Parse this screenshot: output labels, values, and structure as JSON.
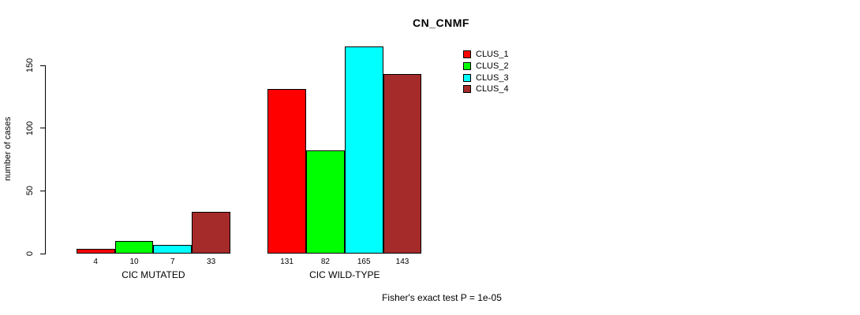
{
  "chart_data": {
    "type": "bar",
    "title": "CN_CNMF",
    "ylabel": "number of cases",
    "xlabel": "",
    "categories": [
      "CIC MUTATED",
      "CIC WILD-TYPE"
    ],
    "series": [
      {
        "name": "CLUS_1",
        "color": "#ff0000",
        "values": [
          4,
          131
        ]
      },
      {
        "name": "CLUS_2",
        "color": "#00ff00",
        "values": [
          10,
          82
        ]
      },
      {
        "name": "CLUS_3",
        "color": "#00ffff",
        "values": [
          7,
          165
        ]
      },
      {
        "name": "CLUS_4",
        "color": "#a52a2a",
        "values": [
          33,
          143
        ]
      }
    ],
    "bar_value_labels": [
      [
        "4",
        "10",
        "7",
        "33"
      ],
      [
        "131",
        "82",
        "165",
        "143"
      ]
    ],
    "y_ticks": [
      0,
      50,
      100,
      150
    ],
    "ylim": [
      0,
      165
    ],
    "grid": false,
    "legend_position": "right",
    "legend_entries": [
      "CLUS_1",
      "CLUS_2",
      "CLUS_3",
      "CLUS_4"
    ],
    "annotation": "Fisher's exact test P = 1e-05"
  },
  "colors": {
    "background": "#ffffff",
    "axis": "#000000",
    "text": "#000000"
  }
}
